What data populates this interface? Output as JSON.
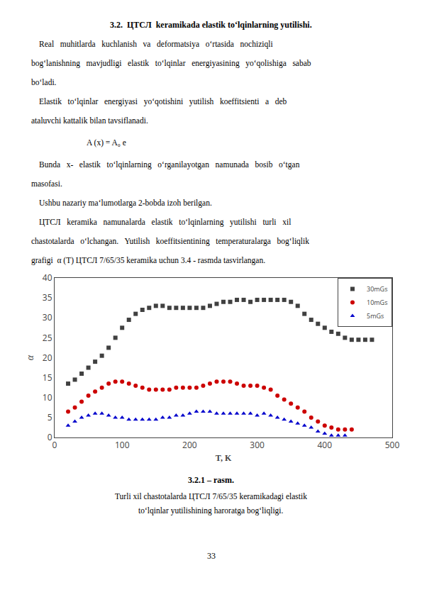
{
  "chart_data": {
    "type": "scatter",
    "xlabel": "T, K",
    "ylabel": "α",
    "xlim": [
      0,
      500
    ],
    "ylim": [
      0,
      40
    ],
    "xticks": [
      0,
      100,
      200,
      300,
      400,
      500
    ],
    "yticks": [
      0,
      5,
      10,
      15,
      20,
      25,
      30,
      35,
      40
    ],
    "grid": false,
    "legend": "upper right",
    "series": [
      {
        "name": "30mGs",
        "color": "#404040",
        "marker": "square",
        "x": [
          20,
          30,
          40,
          50,
          60,
          70,
          80,
          90,
          100,
          110,
          120,
          130,
          140,
          150,
          160,
          170,
          180,
          190,
          200,
          210,
          220,
          230,
          240,
          250,
          260,
          270,
          280,
          290,
          300,
          310,
          320,
          330,
          340,
          350,
          360,
          370,
          380,
          390,
          400,
          410,
          420,
          430,
          440,
          450,
          460,
          470
        ],
        "values": [
          13.5,
          14.5,
          16.0,
          17.5,
          19.0,
          20.5,
          22.5,
          25.0,
          27.5,
          29.5,
          31.0,
          32.0,
          32.5,
          33.0,
          33.0,
          32.5,
          32.5,
          32.5,
          32.5,
          32.5,
          32.5,
          33.0,
          33.5,
          34.0,
          34.0,
          34.5,
          34.5,
          34.0,
          34.5,
          34.5,
          34.5,
          34.5,
          34.5,
          34.0,
          33.0,
          31.0,
          29.5,
          28.5,
          27.5,
          26.5,
          26.0,
          25.0,
          24.5,
          24.5,
          24.5,
          24.5
        ]
      },
      {
        "name": "10mGs",
        "color": "#cc0000",
        "marker": "circle",
        "x": [
          20,
          30,
          40,
          50,
          60,
          70,
          80,
          90,
          100,
          110,
          120,
          130,
          140,
          150,
          160,
          170,
          180,
          190,
          200,
          210,
          220,
          230,
          240,
          250,
          260,
          270,
          280,
          290,
          300,
          310,
          320,
          330,
          340,
          350,
          360,
          370,
          380,
          390,
          400,
          410,
          420,
          430,
          440
        ],
        "values": [
          6.5,
          7.5,
          9.0,
          10.5,
          11.5,
          12.5,
          13.5,
          14.0,
          14.0,
          13.5,
          13.0,
          12.5,
          12.0,
          12.0,
          12.0,
          12.0,
          12.5,
          12.5,
          12.5,
          12.5,
          13.0,
          13.5,
          14.0,
          14.0,
          14.0,
          13.5,
          13.0,
          13.0,
          13.0,
          12.5,
          12.0,
          10.5,
          9.5,
          8.5,
          7.5,
          6.5,
          5.0,
          4.0,
          3.0,
          2.5,
          2.0,
          2.0,
          2.0
        ]
      },
      {
        "name": "5mGs",
        "color": "#0000cc",
        "marker": "triangle",
        "x": [
          20,
          30,
          40,
          50,
          60,
          70,
          80,
          90,
          100,
          110,
          120,
          130,
          140,
          150,
          160,
          170,
          180,
          190,
          200,
          210,
          220,
          230,
          240,
          250,
          260,
          270,
          280,
          290,
          300,
          310,
          320,
          330,
          340,
          350,
          360,
          370,
          380,
          390,
          400,
          410,
          420,
          430
        ],
        "values": [
          3.0,
          4.0,
          5.0,
          5.5,
          6.0,
          6.0,
          5.5,
          5.0,
          5.0,
          4.5,
          4.5,
          4.5,
          4.5,
          4.5,
          5.0,
          5.0,
          5.5,
          5.5,
          6.0,
          6.5,
          6.5,
          6.5,
          6.0,
          6.0,
          6.0,
          6.0,
          6.0,
          6.0,
          5.5,
          6.0,
          5.5,
          5.0,
          4.5,
          4.0,
          3.5,
          3.0,
          2.5,
          1.5,
          1.0,
          0.5,
          0.5,
          0.5
        ]
      }
    ],
    "annotations": [
      {
        "text": "3.2.  ЦТСЛ  keramikada elastik to‘lqinlarning yutilishi."
      },
      {
        "text": "Real   muhitlarda   kuchlanish   va   deformatsiya   o‘rtasida   nochiziqli"
      },
      {
        "text": "bog‘lanishning   mavjudligi   elastik   to‘lqinlar   energiyasining   yo‘qolishiga   sabab"
      },
      {
        "text": "bo‘ladi."
      },
      {
        "text": "Elastik   to‘lqinlar   energiyasi   yo‘qotishini   yutilish   koeffitsienti   a   deb"
      },
      {
        "text": "ataluvchi kattalik bilan tavsiflanadi."
      },
      {
        "text": "A (x) = A₀ e"
      },
      {
        "text": "Bunda   x-   elastik   to‘lqinlarning   o‘rganilayotgan   namunada   bosib   o‘tgan"
      },
      {
        "text": "masofasi."
      },
      {
        "text": "Ushbu nazariy ma‘lumotlarga 2-bobda izoh berilgan."
      },
      {
        "text": "ЦТСЛ   keramika   namunalarda   elastik   to‘lqinlarning   yutilishi   turli   xil"
      },
      {
        "text": "chastotalarda   o‘lchangan.   Yutilish   koeffitsientining   temperaturalarga   bog‘liqlik"
      },
      {
        "text": "grafigi  α (T) ЦТСЛ 7/65/35 keramika uchun 3.4 - rasmda tasvirlangan."
      },
      {
        "text": "3.2.1 – rasm."
      },
      {
        "text": "Turli xil chastotalarda ЦТСЛ 7/65/35 keramikadagi elastik"
      },
      {
        "text": "to‘lqinlar yutilishining haroratga bog‘liqligi."
      },
      {
        "text": "33"
      }
    ]
  }
}
